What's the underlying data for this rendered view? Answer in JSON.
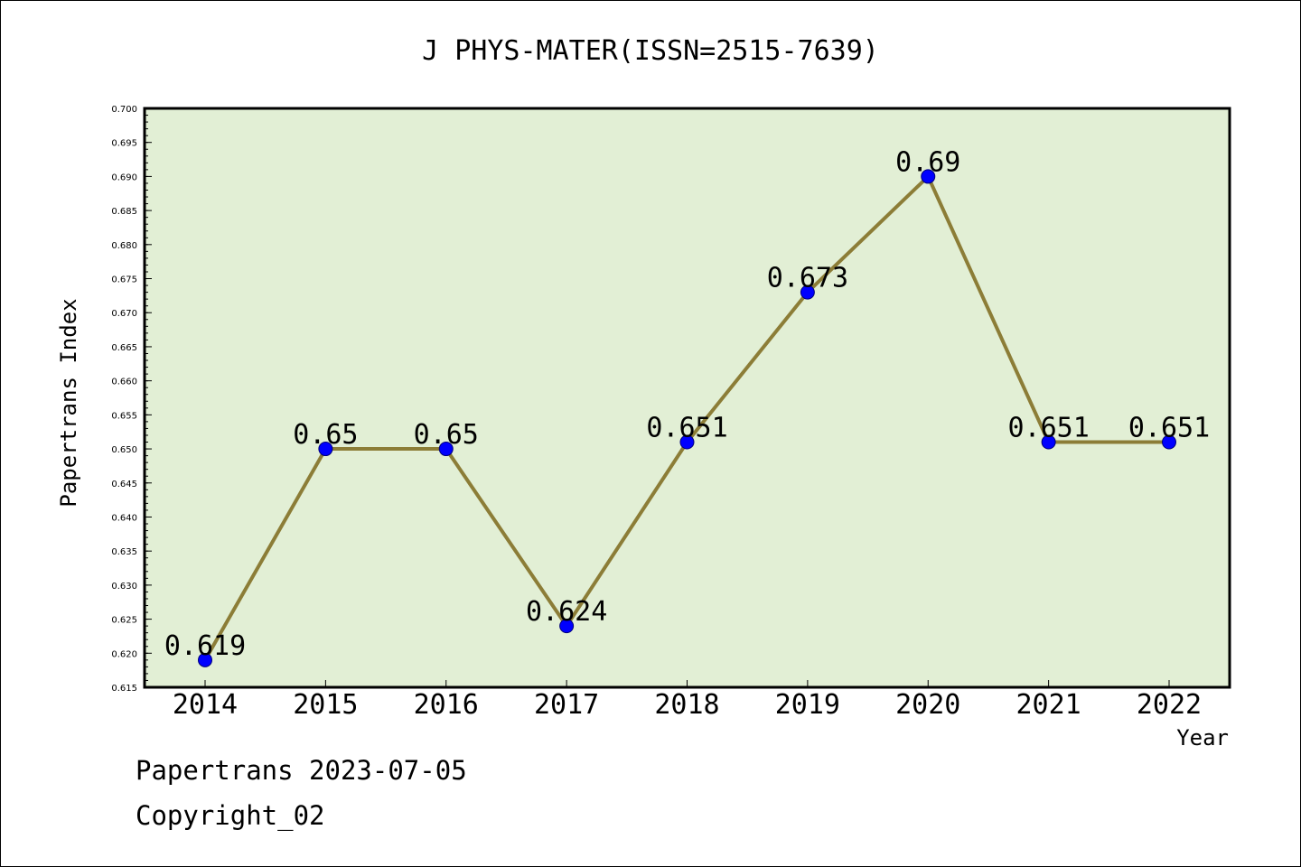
{
  "chart_data": {
    "type": "line",
    "title": "J PHYS-MATER(ISSN=2515-7639)",
    "xlabel": "Year",
    "ylabel": "Papertrans Index",
    "categories": [
      "2014",
      "2015",
      "2016",
      "2017",
      "2018",
      "2019",
      "2020",
      "2021",
      "2022"
    ],
    "series": [
      {
        "values": [
          0.619,
          0.65,
          0.65,
          0.624,
          0.651,
          0.673,
          0.69,
          0.651,
          0.651
        ]
      }
    ],
    "data_labels": [
      "0.619",
      "0.65",
      "0.65",
      "0.624",
      "0.651",
      "0.673",
      "0.69",
      "0.651",
      "0.651"
    ],
    "ylim": [
      0.615,
      0.7
    ],
    "yticks": [
      "0.615",
      "0.620",
      "0.625",
      "0.630",
      "0.635",
      "0.640",
      "0.645",
      "0.650",
      "0.655",
      "0.660",
      "0.665",
      "0.670",
      "0.675",
      "0.680",
      "0.685",
      "0.690",
      "0.695",
      "0.700"
    ],
    "grid": false,
    "legend": "none",
    "colors": {
      "plot_background": "#e2efd5",
      "line": "#8c7d37",
      "marker": "#0000ff",
      "marker_edge": "#00007a"
    }
  },
  "footer": {
    "date_line": "Papertrans 2023-07-05",
    "copyright": "Copyright_02"
  }
}
